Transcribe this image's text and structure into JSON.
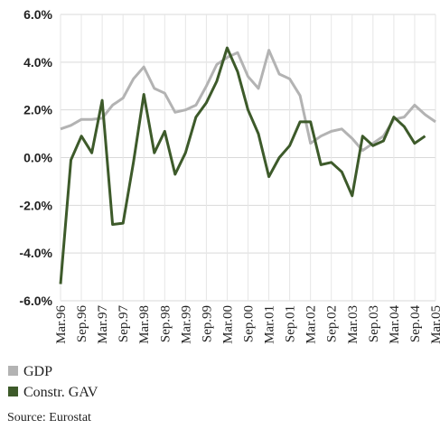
{
  "chart_data": {
    "type": "line",
    "categories": [
      "Mar.96",
      null,
      "Sep.96",
      null,
      "Mar.97",
      null,
      "Sep.97",
      null,
      "Mar.98",
      null,
      "Sep.98",
      null,
      "Mar.99",
      null,
      "Sep.99",
      null,
      "Mar.00",
      null,
      "Sep.00",
      null,
      "Mar.01",
      null,
      "Sep.01",
      null,
      "Mar.02",
      null,
      "Sep.02",
      null,
      "Mar.03",
      null,
      "Sep.03",
      null,
      "Mar.04",
      null,
      "Sep.04",
      null,
      "Mar.05"
    ],
    "series": [
      {
        "name": "GDP",
        "color": "#b3b3b3",
        "values": [
          1.2,
          1.35,
          1.6,
          1.6,
          1.65,
          2.2,
          2.5,
          3.3,
          3.8,
          2.9,
          2.7,
          1.9,
          2.0,
          2.2,
          3.0,
          3.9,
          4.2,
          4.4,
          3.4,
          2.9,
          4.5,
          3.5,
          3.3,
          2.6,
          0.6,
          0.9,
          1.1,
          1.2,
          0.8,
          0.3,
          0.6,
          0.9,
          1.6,
          1.7,
          2.2,
          1.8,
          1.5
        ]
      },
      {
        "name": "Constr. GAV",
        "color": "#3d5a2a",
        "values": [
          -5.3,
          -0.1,
          0.9,
          0.2,
          2.4,
          -2.8,
          -2.75,
          -0.2,
          2.65,
          0.2,
          1.1,
          -0.7,
          0.2,
          1.7,
          2.3,
          3.2,
          4.6,
          3.6,
          2.0,
          1.0,
          -0.8,
          0.0,
          0.5,
          1.5,
          1.5,
          -0.3,
          -0.2,
          -0.6,
          -1.6,
          0.9,
          0.5,
          0.7,
          1.7,
          1.3,
          0.6,
          0.9,
          null
        ]
      }
    ],
    "ylim": [
      -6,
      6
    ],
    "yticks": [
      {
        "value": -6,
        "label": "-6.0%"
      },
      {
        "value": -4,
        "label": "-4.0%"
      },
      {
        "value": -2,
        "label": "-2.0%"
      },
      {
        "value": 0,
        "label": "0.0%"
      },
      {
        "value": 2,
        "label": "2.0%"
      },
      {
        "value": 4,
        "label": "4.0%"
      },
      {
        "value": 6,
        "label": "6.0%"
      }
    ],
    "grid": true,
    "legend": "bottom-left",
    "source": "Source: Eurostat"
  }
}
